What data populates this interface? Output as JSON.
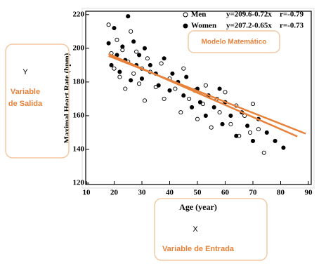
{
  "chart_data": {
    "type": "scatter",
    "x_label": "Age (year)",
    "y_label": "Maximal Heart Rate (bpm)",
    "xlim": [
      10,
      90
    ],
    "xticks": [
      10,
      20,
      30,
      40,
      50,
      60,
      70,
      80,
      90
    ],
    "ylim": [
      120,
      222
    ],
    "yticks": [
      120,
      140,
      160,
      180,
      200,
      220
    ],
    "series": [
      {
        "name": "Men",
        "marker": "open",
        "color": "#000000",
        "equation": "y=209.6-0.72x",
        "r": "r=-0.79",
        "x": [
          18,
          19,
          20,
          21,
          22,
          23,
          24,
          25,
          26,
          27,
          28,
          29,
          30,
          31,
          32,
          33,
          35,
          37,
          38,
          40,
          42,
          44,
          45,
          47,
          49,
          50,
          52,
          53,
          55,
          57,
          58,
          60,
          62,
          64,
          65,
          67,
          69,
          70,
          72,
          74
        ],
        "values": [
          214,
          197,
          188,
          205,
          183,
          199,
          176,
          192,
          210,
          185,
          198,
          179,
          188,
          169,
          194,
          186,
          177,
          191,
          170,
          182,
          176,
          162,
          188,
          170,
          175,
          158,
          167,
          178,
          153,
          170,
          162,
          174,
          155,
          166,
          148,
          160,
          150,
          167,
          152,
          138
        ]
      },
      {
        "name": "Women",
        "marker": "filled",
        "color": "#000000",
        "equation": "y=207.2-0.65x",
        "r": "r=-0.73",
        "x": [
          18,
          19,
          20,
          21,
          22,
          23,
          24,
          25,
          26,
          27,
          28,
          29,
          30,
          31,
          33,
          35,
          36,
          38,
          40,
          41,
          43,
          45,
          46,
          48,
          50,
          51,
          53,
          54,
          56,
          58,
          59,
          60,
          62,
          64,
          66,
          68,
          70,
          72,
          75,
          78,
          81
        ],
        "values": [
          203,
          190,
          212,
          196,
          186,
          201,
          193,
          219,
          181,
          204,
          190,
          196,
          182,
          200,
          190,
          185,
          178,
          194,
          175,
          185,
          180,
          172,
          183,
          165,
          176,
          168,
          160,
          172,
          165,
          176,
          155,
          168,
          160,
          148,
          162,
          154,
          145,
          158,
          150,
          145,
          141
        ]
      }
    ],
    "fits": [
      {
        "intercept": 209.6,
        "slope": -0.72,
        "xrange": [
          18,
          86
        ],
        "color": "#e8823a"
      },
      {
        "intercept": 207.2,
        "slope": -0.65,
        "xrange": [
          18,
          89
        ],
        "color": "#e8823a"
      }
    ],
    "annotations": {
      "model": "Modelo Matemático",
      "y_symbol": "Y",
      "y_label_1": "Variable",
      "y_label_2": "de Salida",
      "x_symbol": "X",
      "x_label": "Variable de Entrada",
      "color": "#e8823a"
    }
  }
}
